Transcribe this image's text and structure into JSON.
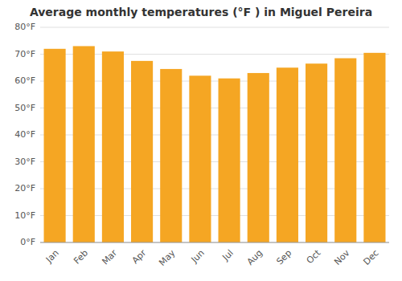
{
  "chart_data": {
    "type": "bar",
    "title": "Average monthly temperatures (°F ) in Miguel Pereira",
    "categories": [
      "Jan",
      "Feb",
      "Mar",
      "Apr",
      "May",
      "Jun",
      "Jul",
      "Aug",
      "Sep",
      "Oct",
      "Nov",
      "Dec"
    ],
    "values": [
      72,
      73,
      71,
      67.5,
      64.5,
      62,
      61,
      63,
      65,
      66.5,
      68.5,
      70.5
    ],
    "color": "#F5A623",
    "ylim": [
      0,
      80
    ],
    "yticks": [
      {
        "value": 0,
        "label": "0°F"
      },
      {
        "value": 10,
        "label": "10°F"
      },
      {
        "value": 20,
        "label": "20°F"
      },
      {
        "value": 30,
        "label": "30°F"
      },
      {
        "value": 40,
        "label": "40°F"
      },
      {
        "value": 50,
        "label": "50°F"
      },
      {
        "value": 60,
        "label": "60°F"
      },
      {
        "value": 70,
        "label": "70°F"
      },
      {
        "value": 80,
        "label": "80°F"
      }
    ],
    "grid": true
  }
}
